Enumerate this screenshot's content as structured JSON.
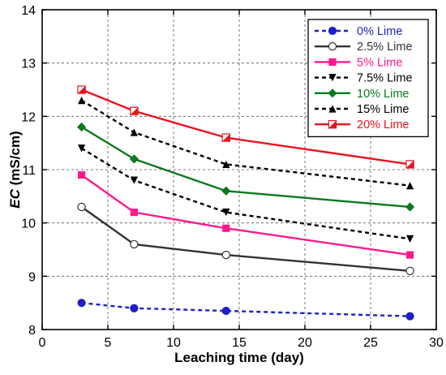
{
  "chart_data": {
    "type": "line",
    "xlabel": "Leaching time (day)",
    "ylabel_italic": "EC",
    "ylabel_unit": " (mS/cm)",
    "xlim": [
      0,
      30
    ],
    "ylim": [
      8,
      14
    ],
    "xticks": [
      0,
      5,
      10,
      15,
      20,
      25,
      30
    ],
    "yticks": [
      8,
      9,
      10,
      11,
      12,
      13,
      14
    ],
    "grid": true,
    "legend_position": "top-right",
    "x": [
      3,
      7,
      14,
      28
    ],
    "series": [
      {
        "name": "0% Lime",
        "values": [
          8.5,
          8.4,
          8.35,
          8.25
        ],
        "color": "#1f1fc8",
        "dash": true,
        "marker": "circle"
      },
      {
        "name": "2.5% Lime",
        "values": [
          10.3,
          9.6,
          9.4,
          9.1
        ],
        "color": "#333333",
        "dash": false,
        "marker": "circle-open"
      },
      {
        "name": "5% Lime",
        "values": [
          10.9,
          10.2,
          9.9,
          9.4
        ],
        "color": "#ff1a8c",
        "dash": false,
        "marker": "square"
      },
      {
        "name": "7.5% Lime",
        "values": [
          11.4,
          10.8,
          10.2,
          9.7
        ],
        "color": "#000000",
        "dash": true,
        "marker": "triangle-down"
      },
      {
        "name": "10% Lime",
        "values": [
          11.8,
          11.2,
          10.6,
          10.3
        ],
        "color": "#0a7a1e",
        "dash": false,
        "marker": "diamond"
      },
      {
        "name": "15% Lime",
        "values": [
          12.3,
          11.7,
          11.1,
          10.7
        ],
        "color": "#000000",
        "dash": true,
        "marker": "triangle-up"
      },
      {
        "name": "20% Lime",
        "values": [
          12.5,
          12.1,
          11.6,
          11.1
        ],
        "color": "#e8141e",
        "dash": false,
        "marker": "half-triangle"
      }
    ]
  }
}
